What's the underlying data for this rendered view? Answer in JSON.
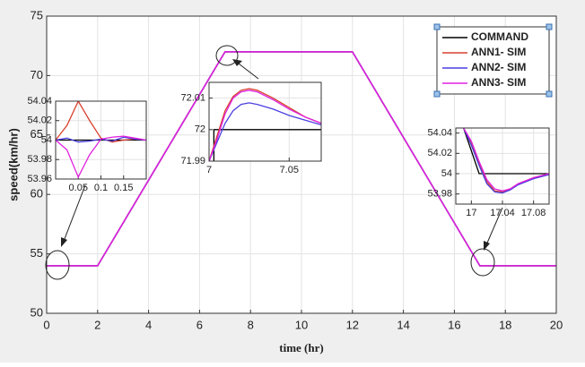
{
  "chart_data": [
    {
      "type": "line",
      "x_label": "time (hr)",
      "y_label": "speed(km/hr)",
      "x": [
        0,
        2,
        7,
        12,
        17,
        20
      ],
      "xlim": [
        0,
        20
      ],
      "xticks": [
        0,
        2,
        4,
        6,
        8,
        10,
        12,
        14,
        16,
        18,
        20
      ],
      "ylim": [
        50,
        75
      ],
      "yticks": [
        50,
        55,
        60,
        65,
        70,
        75
      ],
      "grid": true,
      "legend": "top-right",
      "series": [
        {
          "name": "COMMAND",
          "color": "#000000",
          "values": [
            54,
            54,
            72,
            72,
            54,
            54
          ]
        },
        {
          "name": "ANN1- SIM",
          "color": "#d9412e",
          "values": [
            54,
            54,
            72,
            72,
            54,
            54
          ]
        },
        {
          "name": "ANN2- SIM",
          "color": "#4a3fe0",
          "values": [
            54,
            54,
            72,
            72,
            54,
            54
          ]
        },
        {
          "name": "ANN3- SIM",
          "color": "#e020e0",
          "values": [
            54,
            54,
            72,
            72,
            54,
            54
          ]
        }
      ]
    },
    {
      "type": "line",
      "x": [
        0,
        0.025,
        0.05,
        0.075,
        0.1,
        0.125,
        0.15,
        0.175,
        0.2
      ],
      "xlim": [
        0,
        0.2
      ],
      "xticks": [
        0.05,
        0.1,
        0.15
      ],
      "ylim": [
        53.96,
        54.04
      ],
      "yticks": [
        53.96,
        53.98,
        54,
        54.02,
        54.04
      ],
      "grid": true,
      "series": [
        {
          "color": "#000000",
          "values": [
            54,
            54,
            54,
            54,
            54,
            54,
            54,
            54,
            54
          ]
        },
        {
          "color": "#d9412e",
          "values": [
            54,
            54.015,
            54.04,
            54.02,
            54.002,
            53.998,
            54,
            54.001,
            54
          ]
        },
        {
          "color": "#4a3fe0",
          "values": [
            54,
            54.002,
            53.998,
            53.999,
            54.001,
            53.999,
            54.003,
            54.001,
            54
          ]
        },
        {
          "color": "#e020e0",
          "values": [
            54,
            53.99,
            53.962,
            53.985,
            54.001,
            54.003,
            54.004,
            54.002,
            54
          ]
        }
      ]
    },
    {
      "type": "line",
      "x": [
        7,
        7.005,
        7.01,
        7.015,
        7.02,
        7.025,
        7.03,
        7.04,
        7.05,
        7.06,
        7.07
      ],
      "xlim": [
        7,
        7.07
      ],
      "xticks": [
        7,
        7.05
      ],
      "ylim": [
        71.99,
        72.015
      ],
      "yticks": [
        71.99,
        72,
        72.01
      ],
      "grid": true,
      "series": [
        {
          "color": "#000000",
          "x": [
            7.003,
            7.003,
            7.07
          ],
          "values": [
            71.99,
            72,
            72
          ]
        },
        {
          "color": "#d9412e",
          "values": [
            71.99,
            71.998,
            72.006,
            72.0105,
            72.0125,
            72.013,
            72.0125,
            72.01,
            72.007,
            72.004,
            72.002
          ]
        },
        {
          "color": "#4a3fe0",
          "values": [
            71.99,
            71.996,
            72.002,
            72.006,
            72.008,
            72.0085,
            72.008,
            72.0065,
            72.0045,
            72.003,
            72.0015
          ]
        },
        {
          "color": "#e020e0",
          "values": [
            71.99,
            71.997,
            72.005,
            72.01,
            72.012,
            72.0125,
            72.012,
            72.0095,
            72.0065,
            72.004,
            72.002
          ]
        }
      ]
    },
    {
      "type": "line",
      "x": [
        16.99,
        17,
        17.01,
        17.02,
        17.03,
        17.04,
        17.05,
        17.06,
        17.08,
        17.1
      ],
      "xlim": [
        16.98,
        17.1
      ],
      "xticks": [
        17,
        17.04,
        17.08
      ],
      "ylim": [
        53.97,
        54.045
      ],
      "yticks": [
        53.98,
        54,
        54.02,
        54.04
      ],
      "grid": true,
      "series": [
        {
          "color": "#000000",
          "x": [
            16.99,
            17.01,
            17.1
          ],
          "values": [
            54.045,
            54,
            54
          ]
        },
        {
          "color": "#d9412e",
          "values": [
            54.045,
            54.03,
            54.01,
            53.992,
            53.983,
            53.982,
            53.985,
            53.99,
            53.996,
            54
          ]
        },
        {
          "color": "#4a3fe0",
          "values": [
            54.045,
            54.028,
            54.008,
            53.99,
            53.982,
            53.981,
            53.984,
            53.989,
            53.995,
            53.999
          ]
        },
        {
          "color": "#e020e0",
          "values": [
            54.045,
            54.032,
            54.012,
            53.994,
            53.985,
            53.983,
            53.985,
            53.99,
            53.996,
            54
          ]
        }
      ]
    }
  ]
}
